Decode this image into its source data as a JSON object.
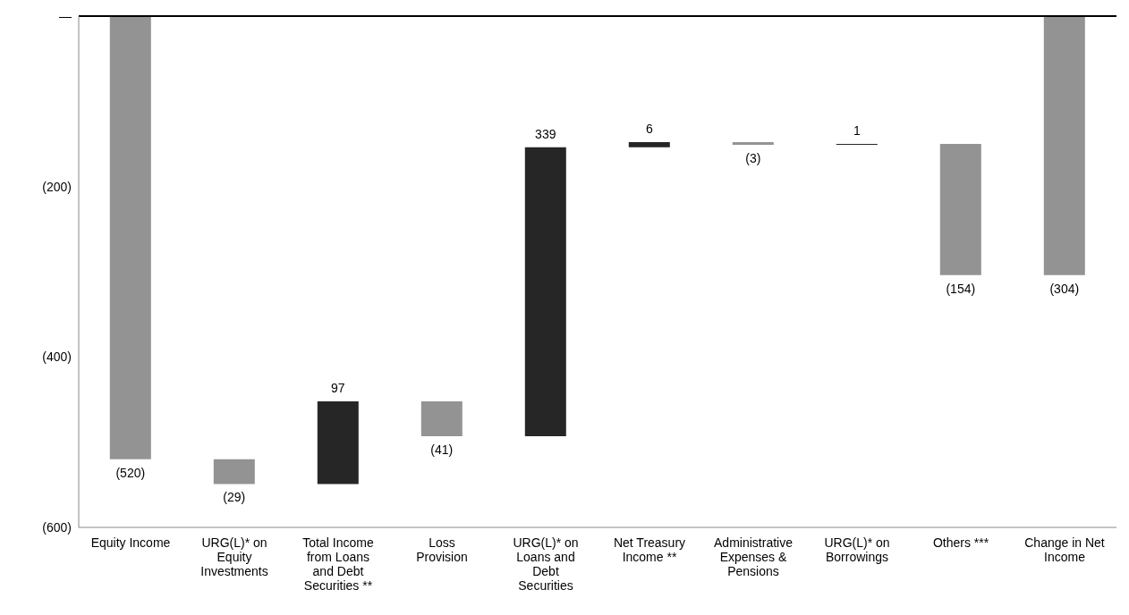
{
  "chart_data": {
    "type": "bar",
    "categories": [
      "Equity Income",
      "URG(L)* on Equity Investments",
      "Total Income from Loans and Debt Securities **",
      "Loss Provision",
      "URG(L)* on Loans and Debt Securities",
      "Net Treasury Income **",
      "Administrative Expenses & Pensions",
      "URG(L)* on Borrowings",
      "Others ***",
      "Change in Net Income"
    ],
    "values": [
      -520,
      -29,
      97,
      -41,
      339,
      6,
      -3,
      1,
      -154,
      -304
    ],
    "base": [
      0,
      -520,
      -549,
      -452,
      -493,
      -154,
      -148,
      -151,
      -150,
      0
    ],
    "colors": [
      "#939393",
      "#939393",
      "#262626",
      "#939393",
      "#262626",
      "#262626",
      "#939393",
      "#262626",
      "#939393",
      "#939393"
    ],
    "value_labels": [
      "(520)",
      "(29)",
      "97",
      "(41)",
      "339",
      "6",
      "(3)",
      "1",
      "(154)",
      "(304)"
    ],
    "ylim": [
      -600,
      0
    ],
    "yticks": [
      {
        "value": 0,
        "label": "—"
      },
      {
        "value": -200,
        "label": "(200)"
      },
      {
        "value": -400,
        "label": "(400)"
      },
      {
        "value": -600,
        "label": "(600)"
      }
    ],
    "ref_lines": [
      {
        "axis": "y",
        "value": 0,
        "color": "#000000"
      }
    ],
    "grid": false,
    "legend": false
  }
}
